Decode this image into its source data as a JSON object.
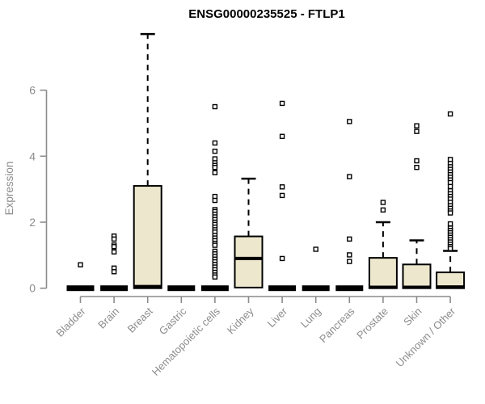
{
  "chart_data": {
    "type": "boxplot",
    "title": "ENSG00000235525 - FTLP1",
    "ylabel": "Expression",
    "yticks": [
      0,
      2,
      4,
      6
    ],
    "ylim": [
      0,
      7.9
    ],
    "grid": false,
    "legend": null,
    "categories": [
      "Bladder",
      "Brain",
      "Breast",
      "Gastric",
      "Hematopoietic cells",
      "Kidney",
      "Liver",
      "Lung",
      "Pancreas",
      "Prostate",
      "Skin",
      "Unknown / Other"
    ],
    "boxes": [
      {
        "category": "Bladder",
        "q1": 0,
        "median": 0,
        "q3": 0,
        "whisker_low": 0,
        "whisker_high": 0,
        "outliers": [
          0.71
        ]
      },
      {
        "category": "Brain",
        "q1": 0,
        "median": 0,
        "q3": 0,
        "whisker_low": 0,
        "whisker_high": 0,
        "outliers": [
          1.58,
          1.49,
          1.31,
          1.26,
          1.1,
          0.61,
          0.5
        ]
      },
      {
        "category": "Breast",
        "q1": 0,
        "median": 0.05,
        "q3": 3.1,
        "whisker_low": 0,
        "whisker_high": 7.7,
        "outliers": []
      },
      {
        "category": "Gastric",
        "q1": 0,
        "median": 0,
        "q3": 0,
        "whisker_low": 0,
        "whisker_high": 0,
        "outliers": []
      },
      {
        "category": "Hematopoietic cells",
        "q1": 0,
        "median": 0,
        "q3": 0,
        "whisker_low": 0,
        "whisker_high": 0,
        "outliers": [
          5.5,
          4.4,
          4.15,
          3.92,
          3.8,
          3.72,
          3.66,
          3.5,
          2.78,
          2.66,
          2.38,
          2.32,
          2.24,
          2.16,
          2.08,
          2.0,
          1.93,
          1.85,
          1.77,
          1.7,
          1.6,
          1.52,
          1.44,
          1.36,
          1.3,
          1.12,
          1.04,
          0.96,
          0.88,
          0.8,
          0.72,
          0.64,
          0.56,
          0.48,
          0.4,
          0.34
        ]
      },
      {
        "category": "Kidney",
        "q1": 0.02,
        "median": 0.9,
        "q3": 1.57,
        "whisker_low": 0,
        "whisker_high": 3.32,
        "outliers": []
      },
      {
        "category": "Liver",
        "q1": 0,
        "median": 0,
        "q3": 0,
        "whisker_low": 0,
        "whisker_high": 0,
        "outliers": [
          5.6,
          4.6,
          3.07,
          2.81,
          0.9
        ]
      },
      {
        "category": "Lung",
        "q1": 0,
        "median": 0,
        "q3": 0,
        "whisker_low": 0,
        "whisker_high": 0,
        "outliers": [
          1.18
        ]
      },
      {
        "category": "Pancreas",
        "q1": 0,
        "median": 0,
        "q3": 0,
        "whisker_low": 0,
        "whisker_high": 0,
        "outliers": [
          5.05,
          3.38,
          1.49,
          1.01,
          0.81
        ]
      },
      {
        "category": "Prostate",
        "q1": 0,
        "median": 0.03,
        "q3": 0.92,
        "whisker_low": 0,
        "whisker_high": 2.0,
        "outliers": [
          2.6,
          2.37
        ]
      },
      {
        "category": "Skin",
        "q1": 0,
        "median": 0.03,
        "q3": 0.72,
        "whisker_low": 0,
        "whisker_high": 1.45,
        "outliers": [
          4.92,
          4.75,
          3.86,
          3.66
        ]
      },
      {
        "category": "Unknown / Other",
        "q1": 0,
        "median": 0.04,
        "q3": 0.48,
        "whisker_low": 0,
        "whisker_high": 1.13,
        "outliers": [
          5.28,
          3.9,
          3.78,
          3.68,
          3.6,
          3.52,
          3.44,
          3.36,
          3.28,
          3.2,
          3.08,
          2.95,
          2.86,
          2.78,
          2.7,
          2.6,
          2.5,
          2.42,
          2.34,
          2.28,
          1.95,
          1.82,
          1.75,
          1.68,
          1.61,
          1.54,
          1.47,
          1.4,
          1.33,
          1.26,
          1.2
        ]
      }
    ],
    "colors": {
      "box_fill": "#EDE8CD",
      "box_border": "#000000",
      "median": "#000000",
      "whisker": "#000000",
      "outlier_stroke": "#000000",
      "outlier_fill": "#ffffff",
      "axis": "#8c8c8c",
      "text_gray": "#8c8c8c",
      "title": "#000000",
      "background": "#ffffff"
    }
  }
}
